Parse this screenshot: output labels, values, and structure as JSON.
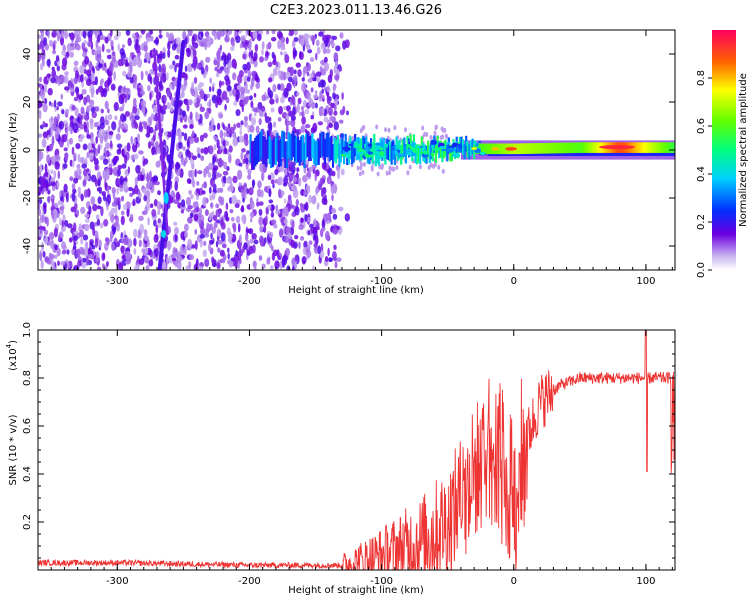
{
  "title": "C2E3.2023.011.13.46.G26",
  "chart_data": [
    {
      "type": "heatmap",
      "title": "C2E3.2023.011.13.46.G26",
      "xlabel": "Height of straight line (km)",
      "ylabel": "Frequency (Hz)",
      "xlim": [
        -360,
        122
      ],
      "ylim": [
        -50,
        50
      ],
      "xticks": [
        "-300",
        "-200",
        "-100",
        "0",
        "100"
      ],
      "xtick_values": [
        -300,
        -200,
        -100,
        0,
        100
      ],
      "yticks": [
        "-40",
        "-20",
        "0",
        "20",
        "40"
      ],
      "ytick_values": [
        -40,
        -20,
        0,
        20,
        40
      ],
      "colorbar": {
        "label": "Normalized spectral amplitude",
        "range": [
          0,
          1
        ],
        "ticks": [
          "0.0",
          "0.2",
          "0.4",
          "0.6",
          "0.8"
        ],
        "tick_values": [
          0.0,
          0.2,
          0.4,
          0.6,
          0.8
        ]
      },
      "features": {
        "carrier_line": [
          {
            "x": -200,
            "freq": 0,
            "amp": 0.3
          },
          {
            "x": -120,
            "freq": 0,
            "amp": 0.45
          },
          {
            "x": -90,
            "freq": 0,
            "amp": 0.5
          },
          {
            "x": -40,
            "freq": 0.5,
            "amp": 0.55
          },
          {
            "x": -10,
            "freq": 0.5,
            "amp": 0.65
          },
          {
            "x": 0,
            "freq": 0.5,
            "amp": 0.7
          },
          {
            "x": 50,
            "freq": 1,
            "amp": 0.6
          },
          {
            "x": 80,
            "freq": 1,
            "amp": 0.9
          },
          {
            "x": 122,
            "freq": 1,
            "amp": 0.55
          }
        ],
        "noise_region_xlim": [
          -360,
          -125
        ],
        "diagonal_streak_1": {
          "from": [
            -268,
            -50
          ],
          "to": [
            -250,
            45
          ],
          "amp": 0.25
        },
        "diagonal_streak_2": {
          "from": [
            -262,
            -35
          ],
          "to": [
            -272,
            42
          ],
          "amp": 0.2
        }
      }
    },
    {
      "type": "line",
      "xlabel": "Height of straight line (km)",
      "ylabel": "SNR (10 * v/v)",
      "scale_label": "(x10",
      "scale_exponent": "4",
      "scale_suffix": ")",
      "xlim": [
        -360,
        122
      ],
      "ylim": [
        0,
        1.0
      ],
      "xticks": [
        "-300",
        "-200",
        "-100",
        "0",
        "100"
      ],
      "xtick_values": [
        -300,
        -200,
        -100,
        0,
        100
      ],
      "yticks": [
        "0.2",
        "0.4",
        "0.6",
        "0.8",
        "1.0"
      ],
      "ytick_values": [
        0.2,
        0.4,
        0.6,
        0.8,
        1.0
      ],
      "color": "#ee3333",
      "series_envelope": [
        {
          "x": -360,
          "y": 0.03
        },
        {
          "x": -300,
          "y": 0.03
        },
        {
          "x": -200,
          "y": 0.02
        },
        {
          "x": -130,
          "y": 0.02
        },
        {
          "x": -100,
          "y": 0.06
        },
        {
          "x": -70,
          "y": 0.12
        },
        {
          "x": -50,
          "y": 0.2
        },
        {
          "x": -40,
          "y": 0.3
        },
        {
          "x": -30,
          "y": 0.4
        },
        {
          "x": -20,
          "y": 0.5
        },
        {
          "x": -10,
          "y": 0.45
        },
        {
          "x": 0,
          "y": 0.3
        },
        {
          "x": 10,
          "y": 0.55
        },
        {
          "x": 20,
          "y": 0.7
        },
        {
          "x": 35,
          "y": 0.77
        },
        {
          "x": 50,
          "y": 0.8
        },
        {
          "x": 80,
          "y": 0.8
        },
        {
          "x": 100,
          "y": 0.8
        },
        {
          "x": 122,
          "y": 0.8
        }
      ]
    }
  ]
}
